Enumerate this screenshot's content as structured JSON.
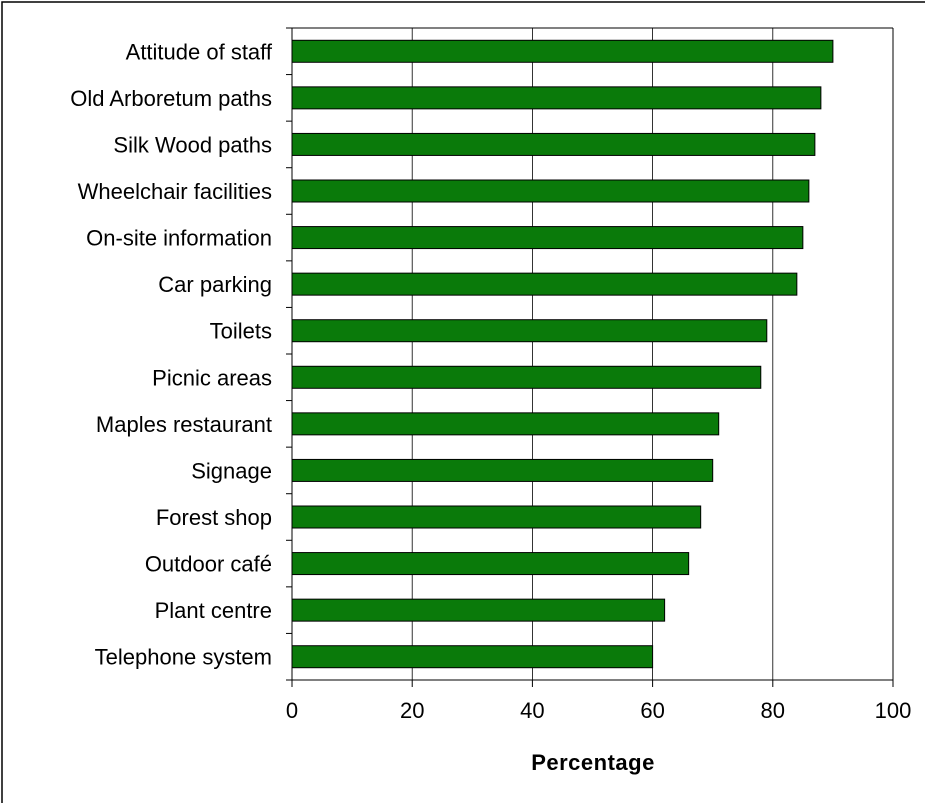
{
  "chart_data": {
    "type": "bar",
    "orientation": "horizontal",
    "categories": [
      "Attitude of staff",
      "Old Arboretum paths",
      "Silk Wood paths",
      "Wheelchair facilities",
      "On-site information",
      "Car parking",
      "Toilets",
      "Picnic areas",
      "Maples restaurant",
      "Signage",
      "Forest shop",
      "Outdoor café",
      "Plant centre",
      "Telephone system"
    ],
    "values": [
      90,
      88,
      87,
      86,
      85,
      84,
      79,
      78,
      71,
      70,
      68,
      66,
      62,
      60
    ],
    "xlabel": "Percentage",
    "ylabel": "",
    "xlim": [
      0,
      100
    ],
    "xticks": [
      0,
      20,
      40,
      60,
      80,
      100
    ],
    "xtick_labels": [
      "0",
      "20",
      "40",
      "60",
      "80",
      "100"
    ],
    "grid": "vertical",
    "legend": "none",
    "colors": {
      "bar_fill": "#0a7a0a",
      "bar_stroke": "#000000",
      "gridline": "#000000",
      "frame": "#000000"
    }
  }
}
